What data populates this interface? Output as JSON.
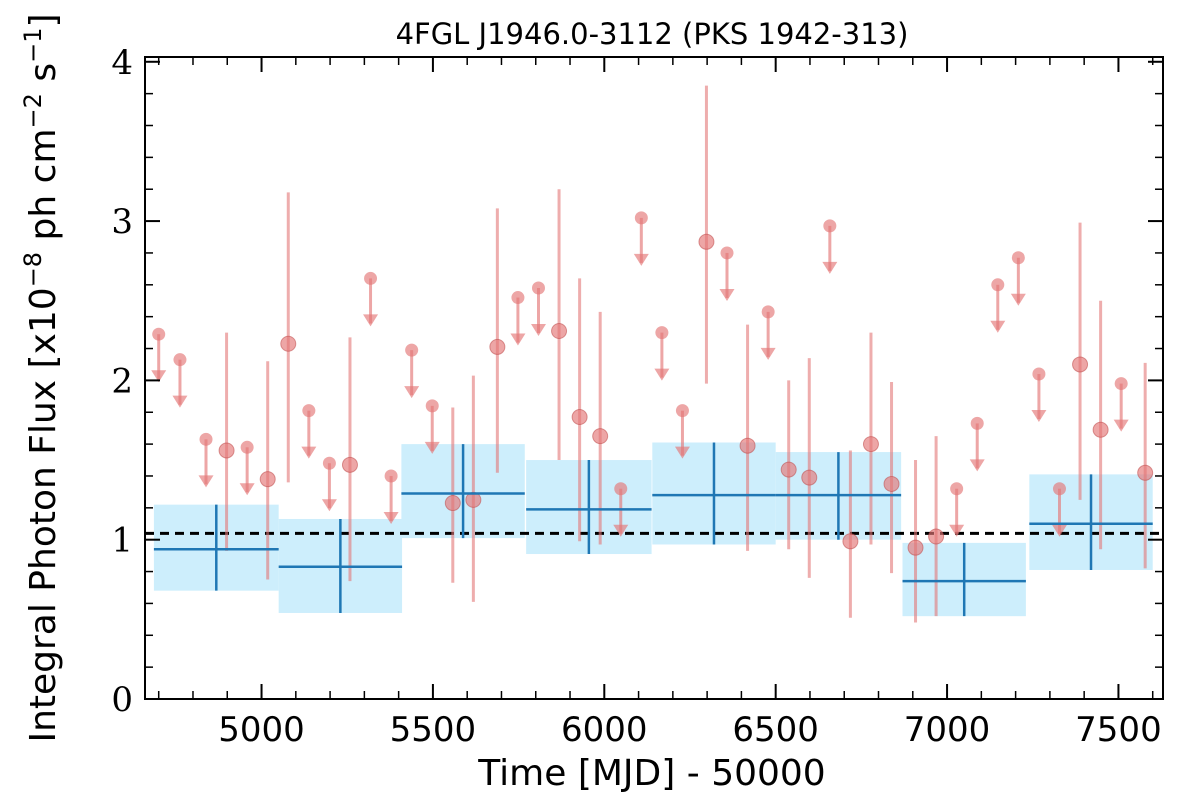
{
  "chart_data": {
    "type": "scatter",
    "title": "4FGL J1946.0-3112 (PKS 1942-313)",
    "xlabel": "Time [MJD] - 50000",
    "ylabel_main": "Integral Photon Flux [x10",
    "ylabel_exp1": "−8",
    "ylabel_mid": " ph cm",
    "ylabel_exp2": "−2",
    "ylabel_s": " s",
    "ylabel_exp3": "−1",
    "ylabel_end": "]",
    "xlim": [
      4660,
      7630
    ],
    "ylim": [
      0,
      4.03
    ],
    "x_ticks": [
      5000,
      5500,
      6000,
      6500,
      7000,
      7500
    ],
    "y_ticks": [
      0,
      1,
      2,
      3,
      4
    ],
    "grid": false,
    "mean_flux": 1.04,
    "colors": {
      "binned_line": "#1f77b4",
      "binned_fill": "#cdeefc",
      "monthly_points": "#e37777",
      "mean_line": "#000000"
    },
    "series": [
      {
        "kind": "binned",
        "points": [
          {
            "x": 4868,
            "x_err": 182,
            "y": 0.94,
            "y_lo": 0.68,
            "y_hi": 1.22
          },
          {
            "x": 5230,
            "x_err": 180,
            "y": 0.83,
            "y_lo": 0.54,
            "y_hi": 1.13
          },
          {
            "x": 5588,
            "x_err": 180,
            "y": 1.29,
            "y_lo": 1.01,
            "y_hi": 1.6
          },
          {
            "x": 5955,
            "x_err": 183,
            "y": 1.19,
            "y_lo": 0.91,
            "y_hi": 1.5
          },
          {
            "x": 6320,
            "x_err": 180,
            "y": 1.28,
            "y_lo": 0.97,
            "y_hi": 1.61
          },
          {
            "x": 6683,
            "x_err": 183,
            "y": 1.28,
            "y_lo": 1.0,
            "y_hi": 1.55
          },
          {
            "x": 7050,
            "x_err": 180,
            "y": 0.74,
            "y_lo": 0.52,
            "y_hi": 0.98
          },
          {
            "x": 7420,
            "x_err": 180,
            "y": 1.1,
            "y_lo": 0.81,
            "y_hi": 1.41
          }
        ]
      },
      {
        "kind": "monthly",
        "points": [
          {
            "x": 4700,
            "y": 2.29,
            "ul": true
          },
          {
            "x": 4762,
            "y": 2.13,
            "ul": true
          },
          {
            "x": 4838,
            "y": 1.63,
            "ul": true
          },
          {
            "x": 4898,
            "y": 1.56,
            "ul": false,
            "y_lo": 0.93,
            "y_hi": 2.3
          },
          {
            "x": 4958,
            "y": 1.58,
            "ul": true
          },
          {
            "x": 5018,
            "y": 1.38,
            "ul": false,
            "y_lo": 0.75,
            "y_hi": 2.12
          },
          {
            "x": 5078,
            "y": 2.23,
            "ul": false,
            "y_lo": 1.36,
            "y_hi": 3.18
          },
          {
            "x": 5138,
            "y": 1.81,
            "ul": true
          },
          {
            "x": 5198,
            "y": 1.48,
            "ul": true
          },
          {
            "x": 5258,
            "y": 1.47,
            "ul": false,
            "y_lo": 0.74,
            "y_hi": 2.27
          },
          {
            "x": 5318,
            "y": 2.64,
            "ul": true
          },
          {
            "x": 5378,
            "y": 1.4,
            "ul": true
          },
          {
            "x": 5438,
            "y": 2.19,
            "ul": true
          },
          {
            "x": 5498,
            "y": 1.84,
            "ul": true
          },
          {
            "x": 5558,
            "y": 1.23,
            "ul": false,
            "y_lo": 0.73,
            "y_hi": 1.83
          },
          {
            "x": 5618,
            "y": 1.25,
            "ul": false,
            "y_lo": 0.61,
            "y_hi": 2.03
          },
          {
            "x": 5688,
            "y": 2.21,
            "ul": false,
            "y_lo": 1.42,
            "y_hi": 3.08
          },
          {
            "x": 5748,
            "y": 2.52,
            "ul": true
          },
          {
            "x": 5808,
            "y": 2.58,
            "ul": true
          },
          {
            "x": 5868,
            "y": 2.31,
            "ul": false,
            "y_lo": 1.5,
            "y_hi": 3.2
          },
          {
            "x": 5928,
            "y": 1.77,
            "ul": false,
            "y_lo": 0.99,
            "y_hi": 2.64
          },
          {
            "x": 5988,
            "y": 1.65,
            "ul": false,
            "y_lo": 0.97,
            "y_hi": 2.43
          },
          {
            "x": 6048,
            "y": 1.32,
            "ul": true
          },
          {
            "x": 6108,
            "y": 3.02,
            "ul": true
          },
          {
            "x": 6168,
            "y": 2.3,
            "ul": true
          },
          {
            "x": 6228,
            "y": 1.81,
            "ul": true
          },
          {
            "x": 6298,
            "y": 2.87,
            "ul": false,
            "y_lo": 1.98,
            "y_hi": 3.85
          },
          {
            "x": 6358,
            "y": 2.8,
            "ul": true
          },
          {
            "x": 6418,
            "y": 1.59,
            "ul": false,
            "y_lo": 0.93,
            "y_hi": 2.35
          },
          {
            "x": 6478,
            "y": 2.43,
            "ul": true
          },
          {
            "x": 6538,
            "y": 1.44,
            "ul": false,
            "y_lo": 0.94,
            "y_hi": 2.0
          },
          {
            "x": 6598,
            "y": 1.39,
            "ul": false,
            "y_lo": 0.76,
            "y_hi": 2.14
          },
          {
            "x": 6658,
            "y": 2.97,
            "ul": true
          },
          {
            "x": 6718,
            "y": 0.99,
            "ul": false,
            "y_lo": 0.51,
            "y_hi": 1.56
          },
          {
            "x": 6778,
            "y": 1.6,
            "ul": false,
            "y_lo": 0.97,
            "y_hi": 2.3
          },
          {
            "x": 6838,
            "y": 1.35,
            "ul": false,
            "y_lo": 0.79,
            "y_hi": 1.99
          },
          {
            "x": 6908,
            "y": 0.95,
            "ul": false,
            "y_lo": 0.48,
            "y_hi": 1.5
          },
          {
            "x": 6968,
            "y": 1.02,
            "ul": false,
            "y_lo": 0.52,
            "y_hi": 1.65
          },
          {
            "x": 7028,
            "y": 1.32,
            "ul": true
          },
          {
            "x": 7088,
            "y": 1.73,
            "ul": true
          },
          {
            "x": 7148,
            "y": 2.6,
            "ul": true
          },
          {
            "x": 7208,
            "y": 2.77,
            "ul": true
          },
          {
            "x": 7268,
            "y": 2.04,
            "ul": true
          },
          {
            "x": 7328,
            "y": 1.32,
            "ul": true
          },
          {
            "x": 7388,
            "y": 2.1,
            "ul": false,
            "y_lo": 1.25,
            "y_hi": 2.99
          },
          {
            "x": 7448,
            "y": 1.69,
            "ul": false,
            "y_lo": 0.94,
            "y_hi": 2.5
          },
          {
            "x": 7508,
            "y": 1.98,
            "ul": true
          },
          {
            "x": 7578,
            "y": 1.42,
            "ul": false,
            "y_lo": 0.82,
            "y_hi": 2.11
          }
        ]
      }
    ]
  }
}
